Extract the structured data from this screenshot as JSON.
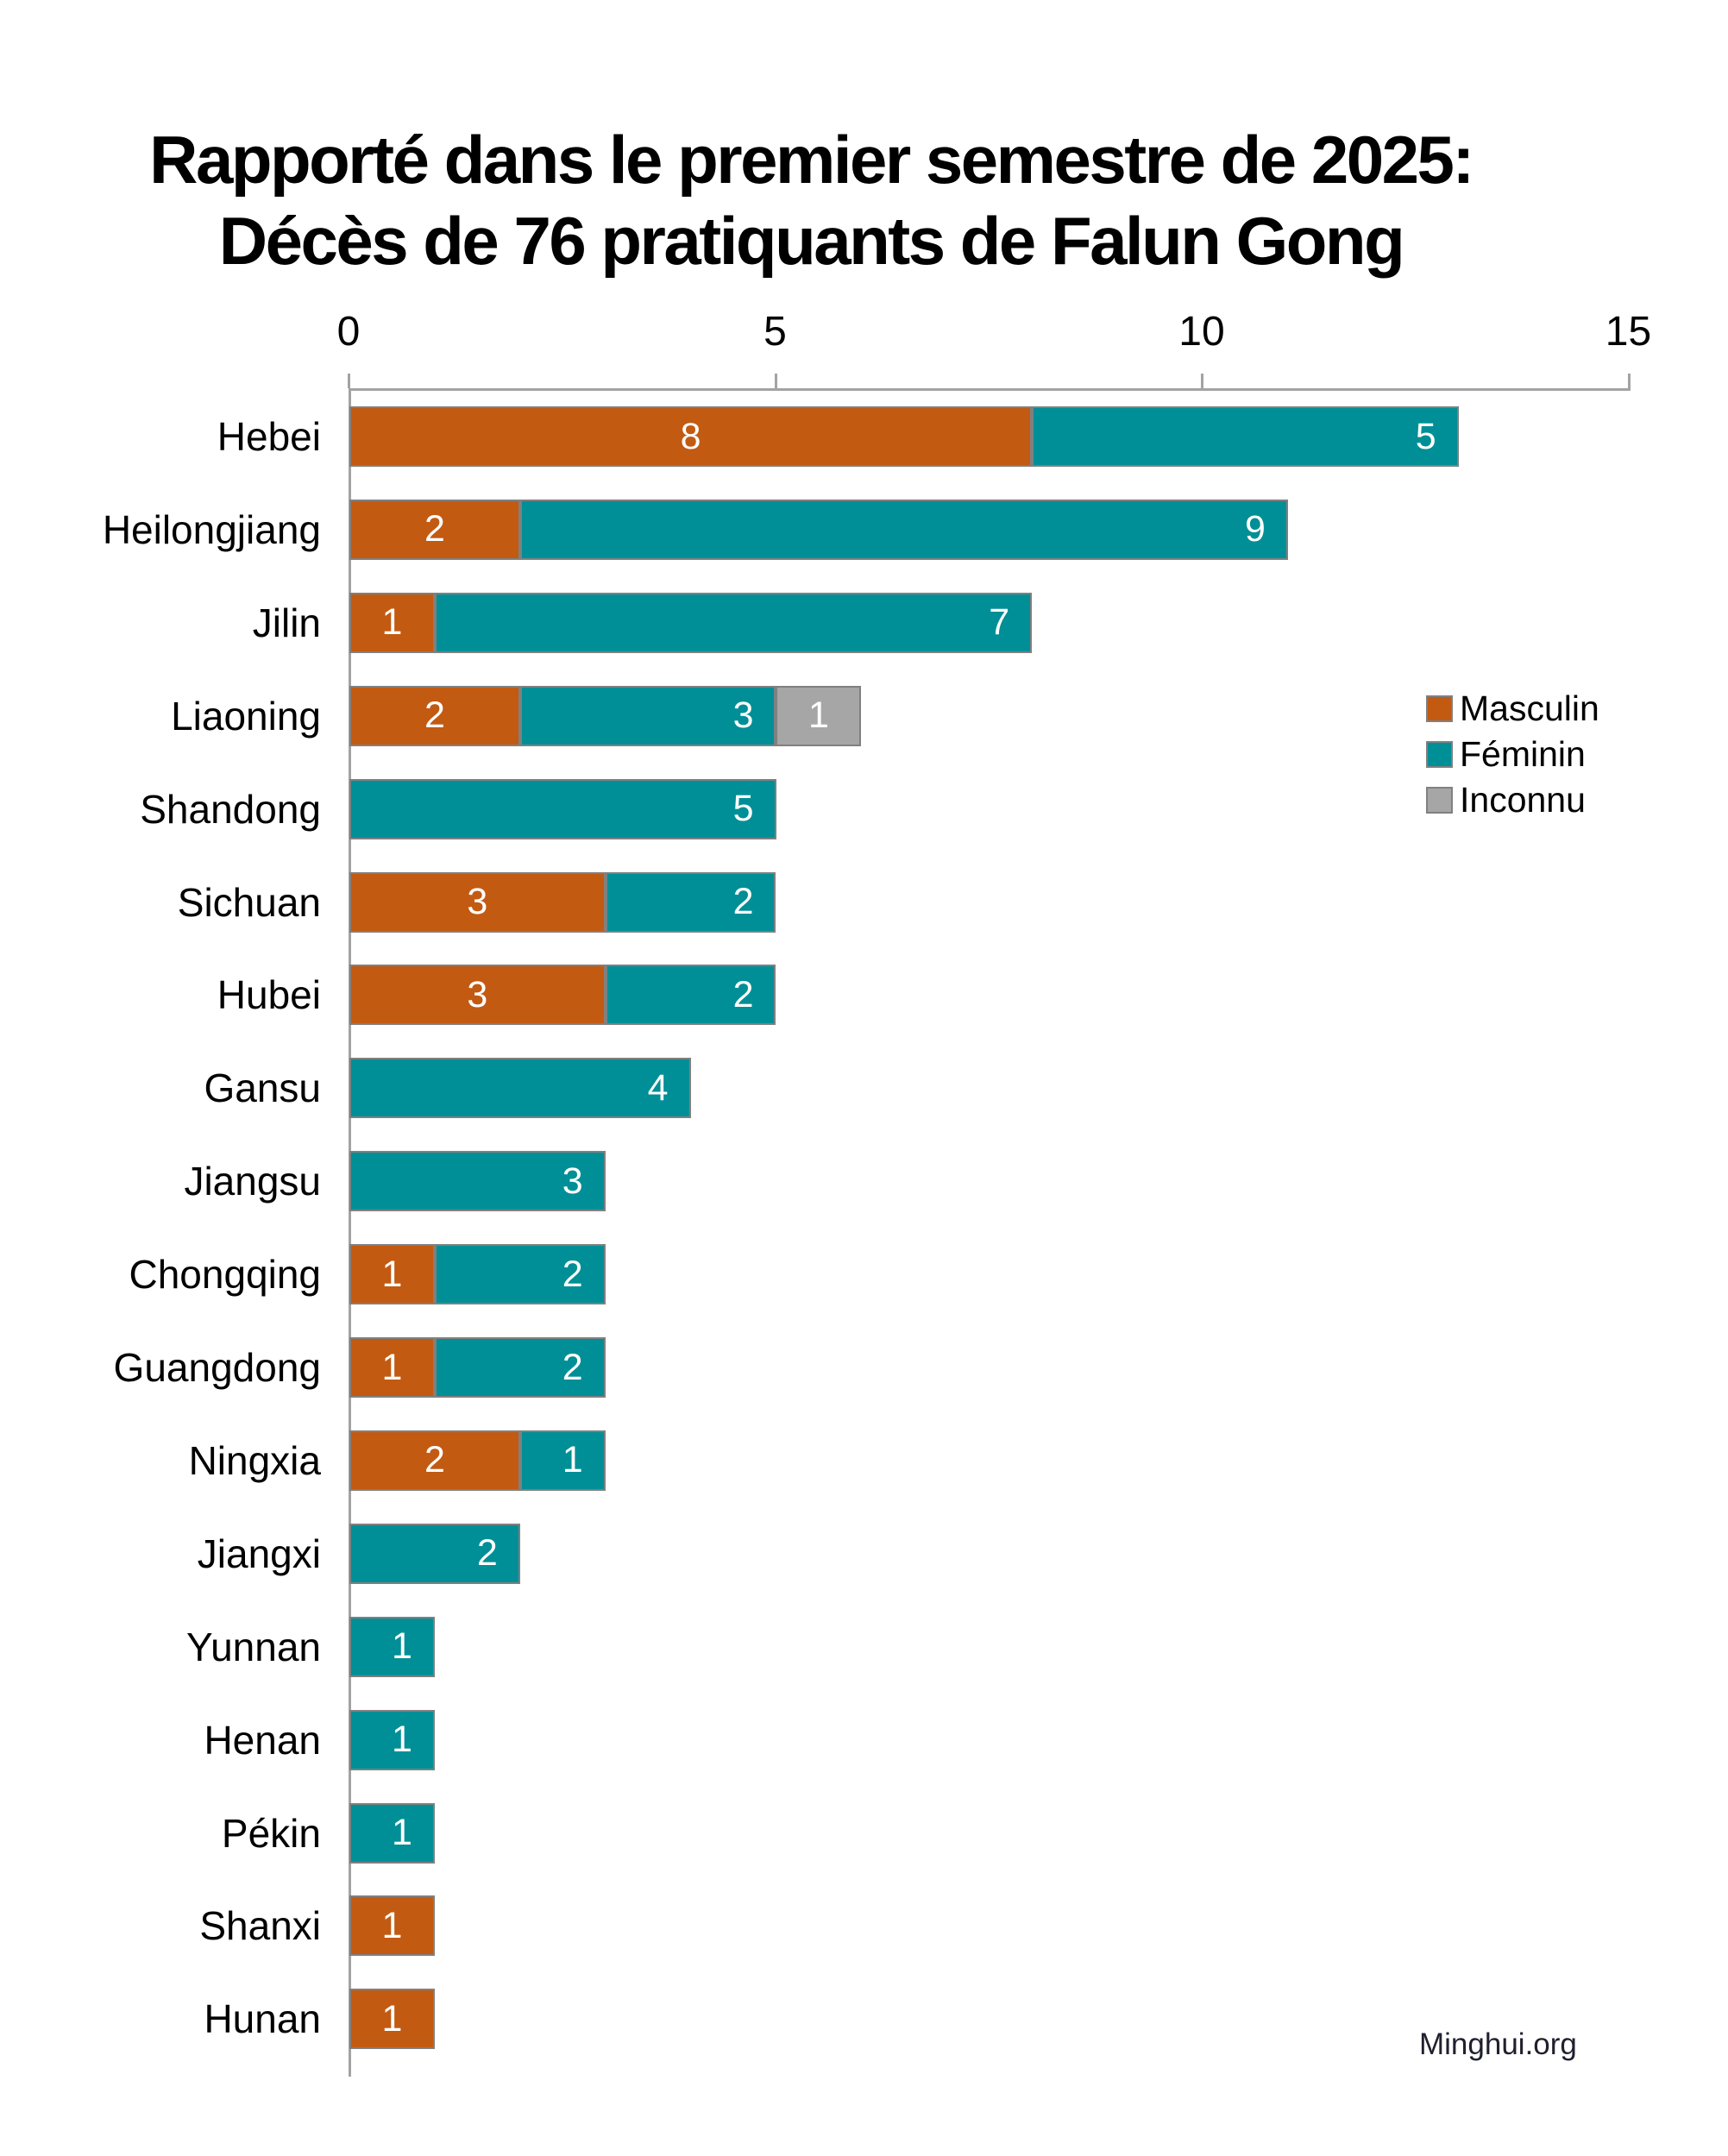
{
  "title": {
    "line1": "Rapporté dans le premier semestre de 2025:",
    "line2": "Décès de 76 pratiquants de Falun Gong"
  },
  "watermark": "Minghui.org",
  "colors": {
    "masculin": "#C25A12",
    "feminin": "#008F96",
    "inconnu": "#A6A6A6",
    "segment_border": "#808080",
    "axis": "#A3A3A3",
    "value_label_text": "#FFFFFF"
  },
  "legend": {
    "position": "right",
    "items": [
      {
        "key": "masculin",
        "label": "Masculin"
      },
      {
        "key": "feminin",
        "label": "Féminin"
      },
      {
        "key": "inconnu",
        "label": "Inconnu"
      }
    ]
  },
  "chart_data": {
    "type": "bar",
    "orientation": "horizontal",
    "stacked": true,
    "title": "Rapporté dans le premier semestre de 2025: Décès de 76 pratiquants de Falun Gong",
    "total_deaths": 76,
    "categories": [
      "Hebei",
      "Heilongjiang",
      "Jilin",
      "Liaoning",
      "Shandong",
      "Sichuan",
      "Hubei",
      "Gansu",
      "Jiangsu",
      "Chongqing",
      "Guangdong",
      "Ningxia",
      "Jiangxi",
      "Yunnan",
      "Henan",
      "Pékin",
      "Shanxi",
      "Hunan"
    ],
    "series": [
      {
        "name": "Masculin",
        "key": "masculin",
        "values": [
          8,
          2,
          1,
          2,
          0,
          3,
          3,
          0,
          0,
          1,
          1,
          2,
          0,
          0,
          0,
          0,
          1,
          1
        ]
      },
      {
        "name": "Féminin",
        "key": "feminin",
        "values": [
          5,
          9,
          7,
          3,
          5,
          2,
          2,
          4,
          3,
          2,
          2,
          1,
          2,
          1,
          1,
          1,
          0,
          0
        ]
      },
      {
        "name": "Inconnu",
        "key": "inconnu",
        "values": [
          0,
          0,
          0,
          1,
          0,
          0,
          0,
          0,
          0,
          0,
          0,
          0,
          0,
          0,
          0,
          0,
          0,
          0
        ]
      }
    ],
    "totals": [
      13,
      11,
      8,
      6,
      5,
      5,
      5,
      4,
      3,
      3,
      3,
      3,
      2,
      1,
      1,
      1,
      1,
      1
    ],
    "xlim": [
      0,
      15
    ],
    "xticks": [
      0,
      5,
      10,
      15
    ],
    "grid": false,
    "xlabel": "",
    "ylabel": "",
    "legend_position": "right",
    "value_labels": "inside"
  }
}
